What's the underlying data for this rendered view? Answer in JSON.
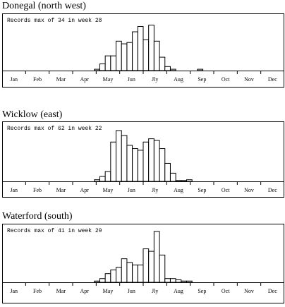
{
  "chart_data": [
    {
      "type": "bar",
      "title": "Donegal (north west)",
      "annotation": "Records max of 34 in week 28",
      "months": [
        "Jan",
        "Feb",
        "Mar",
        "Apr",
        "May",
        "Jun",
        "Jly",
        "Aug",
        "Sep",
        "Oct",
        "Nov",
        "Dec"
      ],
      "values": [
        0,
        0,
        0,
        0,
        0,
        0,
        0,
        0,
        0,
        0,
        0,
        0,
        0,
        0,
        0,
        0,
        0,
        1,
        5,
        11,
        11,
        22,
        20,
        21,
        29,
        33,
        23,
        34,
        22,
        10,
        3,
        1,
        0,
        0,
        0,
        0,
        1,
        0,
        0,
        0,
        0,
        0,
        0,
        0,
        0,
        0,
        0,
        0,
        0,
        0,
        0,
        0
      ],
      "ylim": [
        0,
        38
      ],
      "color": "#ffffff"
    },
    {
      "type": "bar",
      "title": "Wicklow (east)",
      "annotation": "Records max of 62 in week 22",
      "months": [
        "Jan",
        "Feb",
        "Mar",
        "Apr",
        "May",
        "Jun",
        "Jly",
        "Aug",
        "Sep",
        "Oct",
        "Nov",
        "Dec"
      ],
      "values": [
        0,
        0,
        0,
        0,
        0,
        0,
        0,
        0,
        0,
        0,
        0,
        0,
        0,
        0,
        0,
        0,
        0,
        2,
        6,
        12,
        48,
        62,
        56,
        44,
        40,
        38,
        48,
        52,
        50,
        40,
        22,
        10,
        1,
        1,
        2,
        0,
        0,
        0,
        0,
        0,
        0,
        0,
        0,
        0,
        0,
        0,
        0,
        0,
        0,
        0,
        0,
        0
      ],
      "ylim": [
        0,
        62
      ],
      "color": "#ffffff"
    },
    {
      "type": "bar",
      "title": "Waterford (south)",
      "annotation": "Records max of 41 in week 29",
      "months": [
        "Jan",
        "Feb",
        "Mar",
        "Apr",
        "May",
        "Jun",
        "Jly",
        "Aug",
        "Sep",
        "Oct",
        "Nov",
        "Dec"
      ],
      "values": [
        0,
        0,
        0,
        0,
        0,
        0,
        0,
        0,
        0,
        0,
        0,
        0,
        0,
        0,
        0,
        0,
        0,
        1,
        3,
        7,
        10,
        12,
        19,
        16,
        14,
        14,
        27,
        25,
        41,
        22,
        3,
        3,
        2,
        1,
        1,
        0,
        0,
        0,
        0,
        0,
        0,
        0,
        0,
        0,
        0,
        0,
        0,
        0,
        0,
        0,
        0,
        0
      ],
      "ylim": [
        0,
        41
      ],
      "color": "#ffffff"
    }
  ]
}
